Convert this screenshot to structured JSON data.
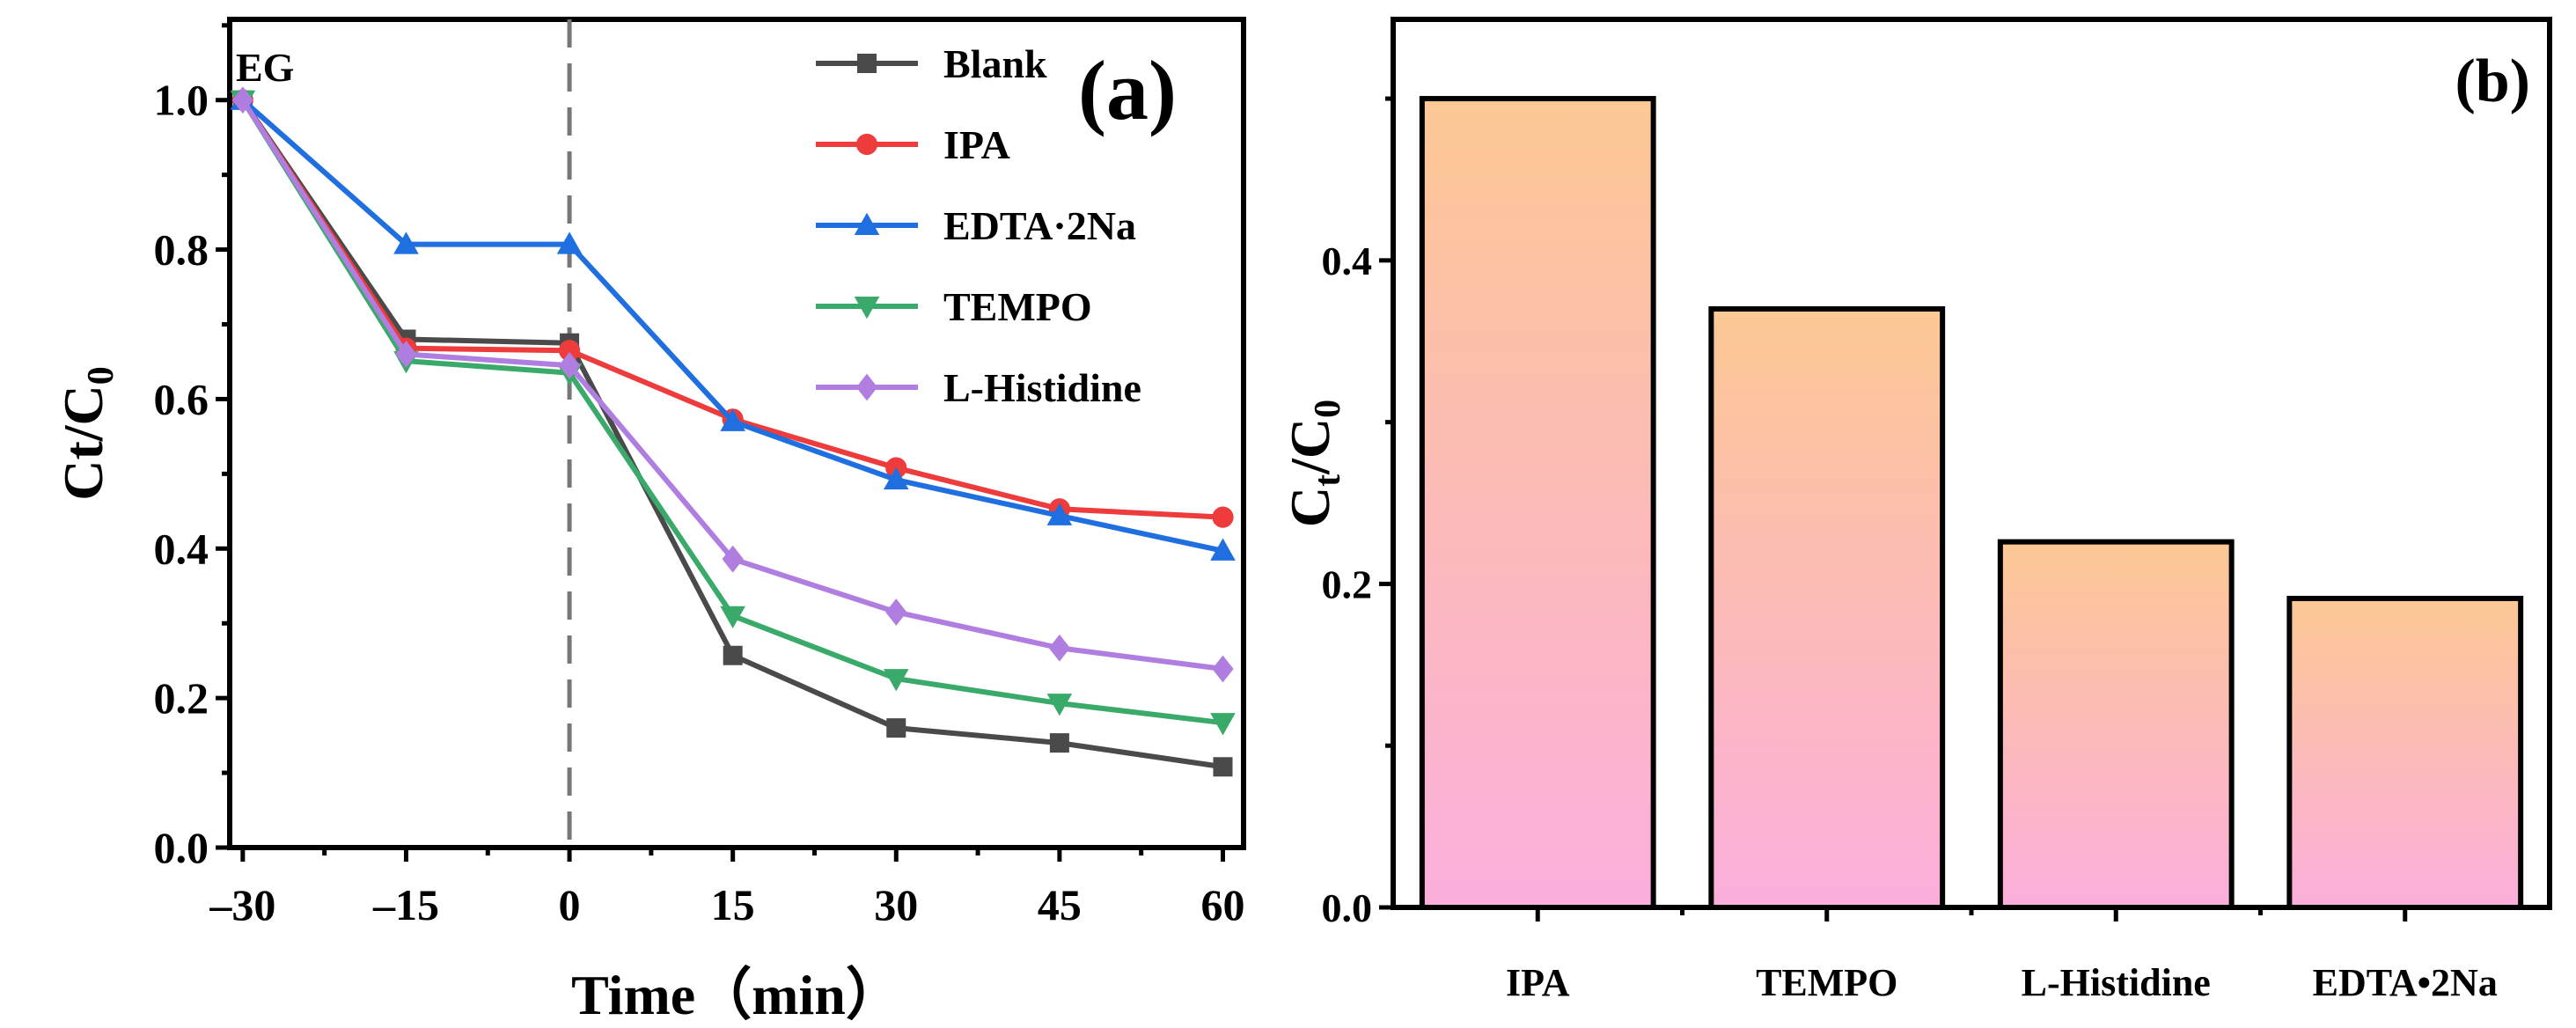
{
  "chart_data": [
    {
      "type": "line",
      "panel_label": "(a)",
      "annotation": "EG",
      "xlabel": "Time（min）",
      "ylabel": "Ct/C",
      "ylabel_sub": "0",
      "x": [
        -30,
        -15,
        0,
        15,
        30,
        45,
        60
      ],
      "xticks": [
        "–30",
        "–15",
        "0",
        "15",
        "30",
        "45",
        "60"
      ],
      "yticks": [
        "0.0",
        "0.2",
        "0.4",
        "0.6",
        "0.8",
        "1.0"
      ],
      "xlim": [
        -31.2,
        61.9
      ],
      "ylim": [
        0,
        1.108
      ],
      "vertical_reference_line_x": 0,
      "legend_position": "top-right",
      "series": [
        {
          "name": "Blank",
          "color": "#4a4a4a",
          "marker": "square",
          "values": [
            1.0,
            0.68,
            0.675,
            0.257,
            0.16,
            0.14,
            0.108
          ]
        },
        {
          "name": "IPA",
          "color": "#ee3b3b",
          "marker": "circle",
          "values": [
            1.0,
            0.668,
            0.665,
            0.573,
            0.508,
            0.453,
            0.442
          ]
        },
        {
          "name": "EDTA·2Na",
          "color": "#1f6fe0",
          "marker": "triangle-up",
          "values": [
            1.0,
            0.807,
            0.807,
            0.57,
            0.492,
            0.444,
            0.397
          ]
        },
        {
          "name": "TEMPO",
          "color": "#3aaa6a",
          "marker": "triangle-down",
          "values": [
            1.0,
            0.651,
            0.635,
            0.31,
            0.226,
            0.193,
            0.167
          ]
        },
        {
          "name": "L-Histidine",
          "color": "#b07ee0",
          "marker": "diamond",
          "values": [
            1.0,
            0.66,
            0.645,
            0.386,
            0.315,
            0.267,
            0.239
          ]
        }
      ]
    },
    {
      "type": "bar",
      "panel_label": "(b)",
      "xlabel": "",
      "ylabel": "C",
      "ylabel_sub1": "t",
      "ylabel_mid": "/C",
      "ylabel_sub2": "0",
      "categories": [
        "IPA",
        "TEMPO",
        "L-Histidine",
        "EDTA•2Na"
      ],
      "values": [
        0.5,
        0.37,
        0.226,
        0.191
      ],
      "yticks": [
        "0.0",
        "0.2",
        "0.4"
      ],
      "ylim": [
        0,
        0.549
      ],
      "bar_gradient": [
        "#fcc894",
        "#fcaedc"
      ]
    }
  ]
}
